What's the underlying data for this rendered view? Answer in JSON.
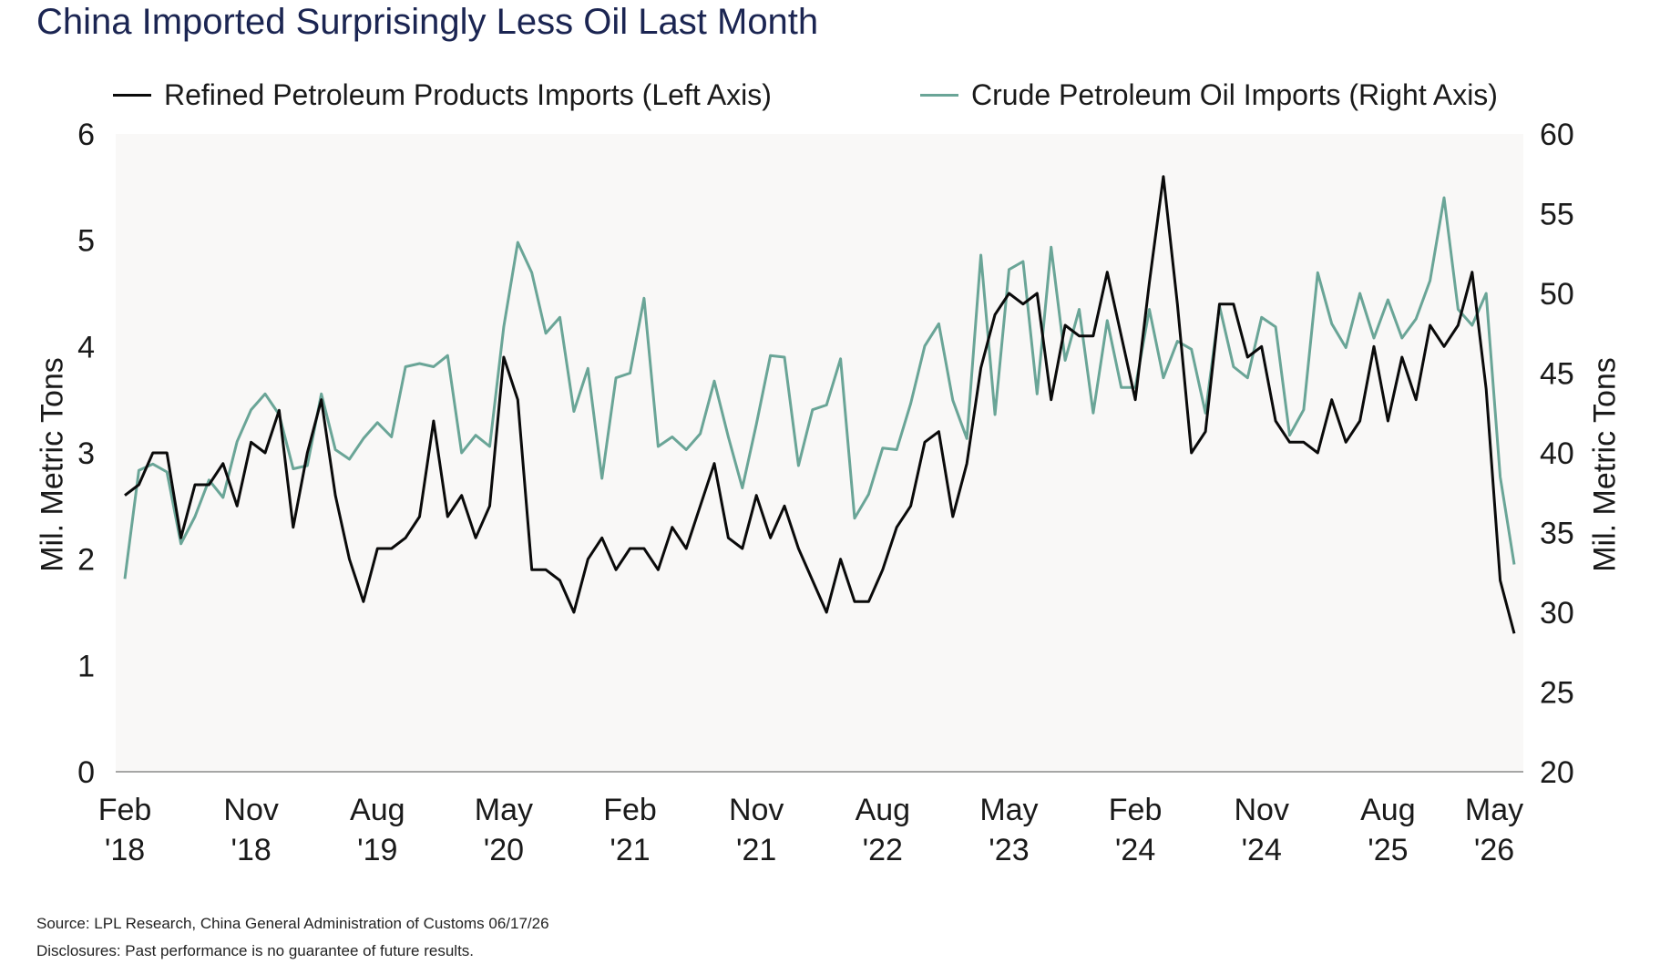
{
  "title": "China Imported Surprisingly Less Oil Last Month",
  "legend": {
    "refined_label": "Refined Petroleum Products Imports (Left Axis)",
    "crude_label": "Crude Petroleum Oil Imports (Right Axis)"
  },
  "footer": {
    "source": "Source: LPL Research, China General Administration of Customs 06/17/26",
    "disclosure": "Disclosures: Past performance is no guarantee of future results."
  },
  "colors": {
    "refined": "#0a0a0a",
    "crude": "#6aa597",
    "plot_bg": "#f9f8f7",
    "title": "#1b2552"
  },
  "chart_data": {
    "type": "line",
    "title": "China Imported Surprisingly Less Oil Last Month",
    "ylabel": "Mil. Metric Tons",
    "ylabel_right": "Mil. Metric Tons",
    "ylim": [
      0,
      6
    ],
    "ylim_right": [
      20,
      60
    ],
    "yticks": [
      "0",
      "1",
      "2",
      "3",
      "4",
      "5",
      "6"
    ],
    "yticks_right": [
      "20",
      "25",
      "30",
      "35",
      "40",
      "45",
      "50",
      "55",
      "60"
    ],
    "grid": false,
    "legend_position": "top",
    "x_start": "2018-02",
    "x_end": "2026-05",
    "x_tick_labels": [
      {
        "month": "Feb",
        "year": "'18"
      },
      {
        "month": "Nov",
        "year": "'18"
      },
      {
        "month": "Aug",
        "year": "'19"
      },
      {
        "month": "May",
        "year": "'20"
      },
      {
        "month": "Feb",
        "year": "'21"
      },
      {
        "month": "Nov",
        "year": "'21"
      },
      {
        "month": "Aug",
        "year": "'22"
      },
      {
        "month": "May",
        "year": "'23"
      },
      {
        "month": "Feb",
        "year": "'24"
      },
      {
        "month": "Nov",
        "year": "'24"
      },
      {
        "month": "Aug",
        "year": "'25"
      },
      {
        "month": "May",
        "year": "'26"
      }
    ],
    "series": [
      {
        "name": "Refined Petroleum Products Imports (Left Axis)",
        "axis": "left",
        "values": [
          {
            "x": "2018-02",
            "y": 2.6
          },
          {
            "x": "2018-03",
            "y": 2.7
          },
          {
            "x": "2018-04",
            "y": 3.0
          },
          {
            "x": "2018-05",
            "y": 3.0
          },
          {
            "x": "2018-06",
            "y": 2.2
          },
          {
            "x": "2018-07",
            "y": 2.7
          },
          {
            "x": "2018-08",
            "y": 2.7
          },
          {
            "x": "2018-09",
            "y": 2.9
          },
          {
            "x": "2018-10",
            "y": 2.5
          },
          {
            "x": "2018-11",
            "y": 3.1
          },
          {
            "x": "2018-12",
            "y": 3.0
          },
          {
            "x": "2019-01",
            "y": 3.4
          },
          {
            "x": "2019-02",
            "y": 2.3
          },
          {
            "x": "2019-03",
            "y": 3.0
          },
          {
            "x": "2019-04",
            "y": 3.5
          },
          {
            "x": "2019-05",
            "y": 2.6
          },
          {
            "x": "2019-06",
            "y": 2.0
          },
          {
            "x": "2019-07",
            "y": 1.6
          },
          {
            "x": "2019-08",
            "y": 2.1
          },
          {
            "x": "2019-09",
            "y": 2.1
          },
          {
            "x": "2019-10",
            "y": 2.2
          },
          {
            "x": "2019-11",
            "y": 2.4
          },
          {
            "x": "2019-12",
            "y": 3.3
          },
          {
            "x": "2020-01",
            "y": 2.4
          },
          {
            "x": "2020-02",
            "y": 2.6
          },
          {
            "x": "2020-03",
            "y": 2.2
          },
          {
            "x": "2020-04",
            "y": 2.5
          },
          {
            "x": "2020-05",
            "y": 3.9
          },
          {
            "x": "2020-06",
            "y": 3.5
          },
          {
            "x": "2020-07",
            "y": 1.9
          },
          {
            "x": "2020-08",
            "y": 1.9
          },
          {
            "x": "2020-09",
            "y": 1.8
          },
          {
            "x": "2020-10",
            "y": 1.5
          },
          {
            "x": "2020-11",
            "y": 2.0
          },
          {
            "x": "2020-12",
            "y": 2.2
          },
          {
            "x": "2021-01",
            "y": 1.9
          },
          {
            "x": "2021-02",
            "y": 2.1
          },
          {
            "x": "2021-03",
            "y": 2.1
          },
          {
            "x": "2021-04",
            "y": 1.9
          },
          {
            "x": "2021-05",
            "y": 2.3
          },
          {
            "x": "2021-06",
            "y": 2.1
          },
          {
            "x": "2021-07",
            "y": 2.5
          },
          {
            "x": "2021-08",
            "y": 2.9
          },
          {
            "x": "2021-09",
            "y": 2.2
          },
          {
            "x": "2021-10",
            "y": 2.1
          },
          {
            "x": "2021-11",
            "y": 2.6
          },
          {
            "x": "2021-12",
            "y": 2.2
          },
          {
            "x": "2022-01",
            "y": 2.5
          },
          {
            "x": "2022-02",
            "y": 2.1
          },
          {
            "x": "2022-03",
            "y": 1.8
          },
          {
            "x": "2022-04",
            "y": 1.5
          },
          {
            "x": "2022-05",
            "y": 2.0
          },
          {
            "x": "2022-06",
            "y": 1.6
          },
          {
            "x": "2022-07",
            "y": 1.6
          },
          {
            "x": "2022-08",
            "y": 1.9
          },
          {
            "x": "2022-09",
            "y": 2.3
          },
          {
            "x": "2022-10",
            "y": 2.5
          },
          {
            "x": "2022-11",
            "y": 3.1
          },
          {
            "x": "2022-12",
            "y": 3.2
          },
          {
            "x": "2023-01",
            "y": 2.4
          },
          {
            "x": "2023-02",
            "y": 2.9
          },
          {
            "x": "2023-03",
            "y": 3.8
          },
          {
            "x": "2023-04",
            "y": 4.3
          },
          {
            "x": "2023-05",
            "y": 4.5
          },
          {
            "x": "2023-06",
            "y": 4.4
          },
          {
            "x": "2023-07",
            "y": 4.5
          },
          {
            "x": "2023-08",
            "y": 3.5
          },
          {
            "x": "2023-09",
            "y": 4.2
          },
          {
            "x": "2023-10",
            "y": 4.1
          },
          {
            "x": "2023-11",
            "y": 4.1
          },
          {
            "x": "2023-12",
            "y": 4.7
          },
          {
            "x": "2024-01",
            "y": 4.1
          },
          {
            "x": "2024-02",
            "y": 3.5
          },
          {
            "x": "2024-03",
            "y": 4.6
          },
          {
            "x": "2024-04",
            "y": 5.6
          },
          {
            "x": "2024-05",
            "y": 4.4
          },
          {
            "x": "2024-06",
            "y": 3.0
          },
          {
            "x": "2024-07",
            "y": 3.2
          },
          {
            "x": "2024-08",
            "y": 4.4
          },
          {
            "x": "2024-09",
            "y": 4.4
          },
          {
            "x": "2024-10",
            "y": 3.9
          },
          {
            "x": "2024-11",
            "y": 4.0
          },
          {
            "x": "2024-12",
            "y": 3.3
          },
          {
            "x": "2025-01",
            "y": 3.1
          },
          {
            "x": "2025-02",
            "y": 3.1
          },
          {
            "x": "2025-03",
            "y": 3.0
          },
          {
            "x": "2025-04",
            "y": 3.5
          },
          {
            "x": "2025-05",
            "y": 3.1
          },
          {
            "x": "2025-06",
            "y": 3.3
          },
          {
            "x": "2025-07",
            "y": 4.0
          },
          {
            "x": "2025-08",
            "y": 3.3
          },
          {
            "x": "2025-09",
            "y": 3.9
          },
          {
            "x": "2025-10",
            "y": 3.5
          },
          {
            "x": "2025-11",
            "y": 4.2
          },
          {
            "x": "2025-12",
            "y": 4.0
          },
          {
            "x": "2026-01",
            "y": 4.2
          },
          {
            "x": "2026-02",
            "y": 4.7
          },
          {
            "x": "2026-03",
            "y": 3.6
          },
          {
            "x": "2026-04",
            "y": 1.8
          },
          {
            "x": "2026-05",
            "y": 1.3
          }
        ]
      },
      {
        "name": "Crude Petroleum Oil Imports (Right Axis)",
        "axis": "right",
        "values": [
          {
            "x": "2018-02",
            "y": 32.1
          },
          {
            "x": "2018-03",
            "y": 38.9
          },
          {
            "x": "2018-04",
            "y": 39.3
          },
          {
            "x": "2018-05",
            "y": 38.8
          },
          {
            "x": "2018-06",
            "y": 34.3
          },
          {
            "x": "2018-07",
            "y": 36.0
          },
          {
            "x": "2018-08",
            "y": 38.3
          },
          {
            "x": "2018-09",
            "y": 37.2
          },
          {
            "x": "2018-10",
            "y": 40.7
          },
          {
            "x": "2018-11",
            "y": 42.7
          },
          {
            "x": "2018-12",
            "y": 43.7
          },
          {
            "x": "2019-01",
            "y": 42.4
          },
          {
            "x": "2019-02",
            "y": 39.0
          },
          {
            "x": "2019-03",
            "y": 39.2
          },
          {
            "x": "2019-04",
            "y": 43.7
          },
          {
            "x": "2019-05",
            "y": 40.2
          },
          {
            "x": "2019-06",
            "y": 39.6
          },
          {
            "x": "2019-07",
            "y": 40.9
          },
          {
            "x": "2019-08",
            "y": 41.9
          },
          {
            "x": "2019-09",
            "y": 41.0
          },
          {
            "x": "2019-10",
            "y": 45.4
          },
          {
            "x": "2019-11",
            "y": 45.6
          },
          {
            "x": "2019-12",
            "y": 45.4
          },
          {
            "x": "2020-01",
            "y": 46.1
          },
          {
            "x": "2020-02",
            "y": 40.0
          },
          {
            "x": "2020-03",
            "y": 41.1
          },
          {
            "x": "2020-04",
            "y": 40.4
          },
          {
            "x": "2020-05",
            "y": 47.9
          },
          {
            "x": "2020-06",
            "y": 53.2
          },
          {
            "x": "2020-07",
            "y": 51.3
          },
          {
            "x": "2020-08",
            "y": 47.5
          },
          {
            "x": "2020-09",
            "y": 48.5
          },
          {
            "x": "2020-10",
            "y": 42.6
          },
          {
            "x": "2020-11",
            "y": 45.3
          },
          {
            "x": "2020-12",
            "y": 38.4
          },
          {
            "x": "2021-01",
            "y": 44.7
          },
          {
            "x": "2021-02",
            "y": 45.0
          },
          {
            "x": "2021-03",
            "y": 49.7
          },
          {
            "x": "2021-04",
            "y": 40.4
          },
          {
            "x": "2021-05",
            "y": 41.0
          },
          {
            "x": "2021-06",
            "y": 40.2
          },
          {
            "x": "2021-07",
            "y": 41.2
          },
          {
            "x": "2021-08",
            "y": 44.5
          },
          {
            "x": "2021-09",
            "y": 41.0
          },
          {
            "x": "2021-10",
            "y": 37.8
          },
          {
            "x": "2021-11",
            "y": 41.8
          },
          {
            "x": "2021-12",
            "y": 46.1
          },
          {
            "x": "2022-01",
            "y": 46.0
          },
          {
            "x": "2022-02",
            "y": 39.2
          },
          {
            "x": "2022-03",
            "y": 42.7
          },
          {
            "x": "2022-04",
            "y": 43.0
          },
          {
            "x": "2022-05",
            "y": 45.9
          },
          {
            "x": "2022-06",
            "y": 35.9
          },
          {
            "x": "2022-07",
            "y": 37.4
          },
          {
            "x": "2022-08",
            "y": 40.3
          },
          {
            "x": "2022-09",
            "y": 40.2
          },
          {
            "x": "2022-10",
            "y": 43.1
          },
          {
            "x": "2022-11",
            "y": 46.7
          },
          {
            "x": "2022-12",
            "y": 48.1
          },
          {
            "x": "2023-01",
            "y": 43.3
          },
          {
            "x": "2023-02",
            "y": 40.9
          },
          {
            "x": "2023-03",
            "y": 52.4
          },
          {
            "x": "2023-04",
            "y": 42.4
          },
          {
            "x": "2023-05",
            "y": 51.5
          },
          {
            "x": "2023-06",
            "y": 52.0
          },
          {
            "x": "2023-07",
            "y": 43.7
          },
          {
            "x": "2023-08",
            "y": 52.9
          },
          {
            "x": "2023-09",
            "y": 45.8
          },
          {
            "x": "2023-10",
            "y": 49.0
          },
          {
            "x": "2023-11",
            "y": 42.5
          },
          {
            "x": "2023-12",
            "y": 48.3
          },
          {
            "x": "2024-01",
            "y": 44.1
          },
          {
            "x": "2024-02",
            "y": 44.1
          },
          {
            "x": "2024-03",
            "y": 49.0
          },
          {
            "x": "2024-04",
            "y": 44.7
          },
          {
            "x": "2024-05",
            "y": 47.0
          },
          {
            "x": "2024-06",
            "y": 46.5
          },
          {
            "x": "2024-07",
            "y": 42.5
          },
          {
            "x": "2024-08",
            "y": 49.2
          },
          {
            "x": "2024-09",
            "y": 45.4
          },
          {
            "x": "2024-10",
            "y": 44.7
          },
          {
            "x": "2024-11",
            "y": 48.5
          },
          {
            "x": "2024-12",
            "y": 47.9
          },
          {
            "x": "2025-01",
            "y": 41.1
          },
          {
            "x": "2025-02",
            "y": 42.7
          },
          {
            "x": "2025-03",
            "y": 51.3
          },
          {
            "x": "2025-04",
            "y": 48.1
          },
          {
            "x": "2025-05",
            "y": 46.6
          },
          {
            "x": "2025-06",
            "y": 50.0
          },
          {
            "x": "2025-07",
            "y": 47.2
          },
          {
            "x": "2025-08",
            "y": 49.6
          },
          {
            "x": "2025-09",
            "y": 47.2
          },
          {
            "x": "2025-10",
            "y": 48.4
          },
          {
            "x": "2025-11",
            "y": 50.8
          },
          {
            "x": "2025-12",
            "y": 56.0
          },
          {
            "x": "2026-01",
            "y": 49.0
          },
          {
            "x": "2026-02",
            "y": 48.0
          },
          {
            "x": "2026-03",
            "y": 50.0
          },
          {
            "x": "2026-04",
            "y": 38.5
          },
          {
            "x": "2026-05",
            "y": 33.0
          }
        ]
      }
    ]
  }
}
